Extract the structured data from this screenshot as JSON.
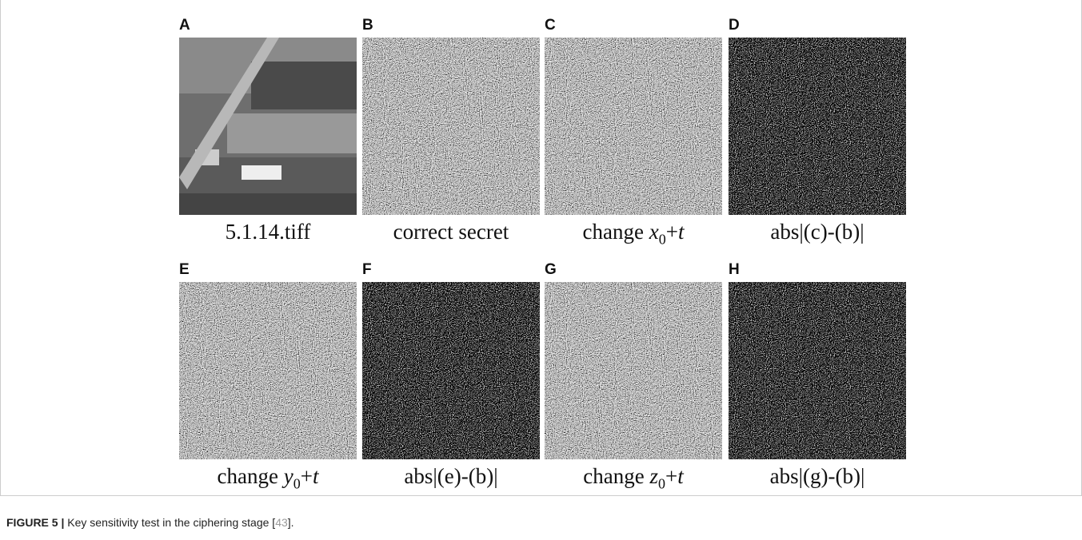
{
  "panels": [
    {
      "letter": "A",
      "caption": {
        "text": "5.1.14.tiff"
      },
      "kind": "photo"
    },
    {
      "letter": "B",
      "caption": {
        "text": "correct secret"
      },
      "kind": "noise"
    },
    {
      "letter": "C",
      "caption": {
        "prefix": "change ",
        "var": "x",
        "sub": "0",
        "op": "+",
        "t": "t"
      },
      "kind": "noise"
    },
    {
      "letter": "D",
      "caption": {
        "text": "abs|(c)-(b)|"
      },
      "kind": "dark"
    },
    {
      "letter": "E",
      "caption": {
        "prefix": "change ",
        "var": "y",
        "sub": "0",
        "op": "+",
        "t": "t"
      },
      "kind": "noise"
    },
    {
      "letter": "F",
      "caption": {
        "text": "abs|(e)-(b)|"
      },
      "kind": "dark"
    },
    {
      "letter": "G",
      "caption": {
        "prefix": "change ",
        "var": "z",
        "sub": "0",
        "op": "+",
        "t": "t"
      },
      "kind": "noise"
    },
    {
      "letter": "H",
      "caption": {
        "text": "abs|(g)-(b)|"
      },
      "kind": "dark"
    }
  ],
  "figure_caption": {
    "label": "FIGURE 5 |",
    "text": " Key sensitivity test in the ciphering stage [",
    "ref": "43",
    "end": "]."
  }
}
